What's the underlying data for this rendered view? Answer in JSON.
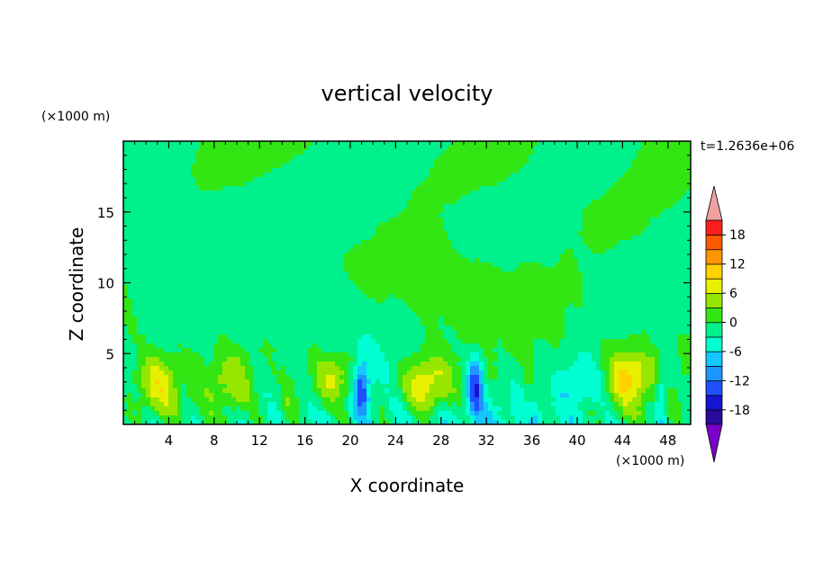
{
  "chart_data": {
    "type": "heatmap",
    "title": "vertical velocity",
    "xlabel": "X coordinate",
    "ylabel": "Z coordinate",
    "x_unit": "(×1000 m)",
    "y_unit": "(×1000 m)",
    "time_label": "t=1.2636e+06",
    "xlim": [
      0,
      50
    ],
    "ylim": [
      0,
      20
    ],
    "x_ticks": [
      4,
      8,
      12,
      16,
      20,
      24,
      28,
      32,
      36,
      40,
      44,
      48
    ],
    "y_ticks": [
      5,
      10,
      15
    ],
    "colorbar": {
      "levels": [
        -21,
        -18,
        -15,
        -12,
        -9,
        -6,
        -3,
        0,
        3,
        6,
        9,
        12,
        15,
        18,
        21
      ],
      "tick_labels": [
        18,
        12,
        6,
        0,
        -6,
        -12,
        -18
      ],
      "colors": [
        "#7a00c8",
        "#2a0a9c",
        "#1414d2",
        "#1e50ff",
        "#1e96ff",
        "#14c8ff",
        "#00ffd2",
        "#00f08c",
        "#32e614",
        "#96e600",
        "#e6f000",
        "#ffd200",
        "#ff9600",
        "#ff5a00",
        "#ff1e1e",
        "#f0a0a0"
      ],
      "extend": "both"
    },
    "features": [
      {
        "x": 3,
        "z": 2.8,
        "w": 3.2,
        "peak": 8
      },
      {
        "x": 9.5,
        "z": 3.0,
        "w": 3.0,
        "peak": 5
      },
      {
        "x": 14.5,
        "z": 1.1,
        "w": 1.2,
        "peak": 4
      },
      {
        "x": 18.5,
        "z": 3.2,
        "w": 3.6,
        "peak": 9
      },
      {
        "x": 21,
        "z": 2.5,
        "w": 1.2,
        "peak": -13
      },
      {
        "x": 26.8,
        "z": 2.8,
        "w": 4.2,
        "peak": 10
      },
      {
        "x": 31,
        "z": 2.7,
        "w": 1.2,
        "peak": -14
      },
      {
        "x": 35.5,
        "z": 1.8,
        "w": 1.0,
        "peak": 2
      },
      {
        "x": 40.5,
        "z": 3.0,
        "w": 3.5,
        "peak": -5
      },
      {
        "x": 44.5,
        "z": 3.3,
        "w": 3.4,
        "peak": 10
      },
      {
        "x": 47.5,
        "z": 2.4,
        "w": 1.0,
        "peak": -7
      }
    ]
  }
}
